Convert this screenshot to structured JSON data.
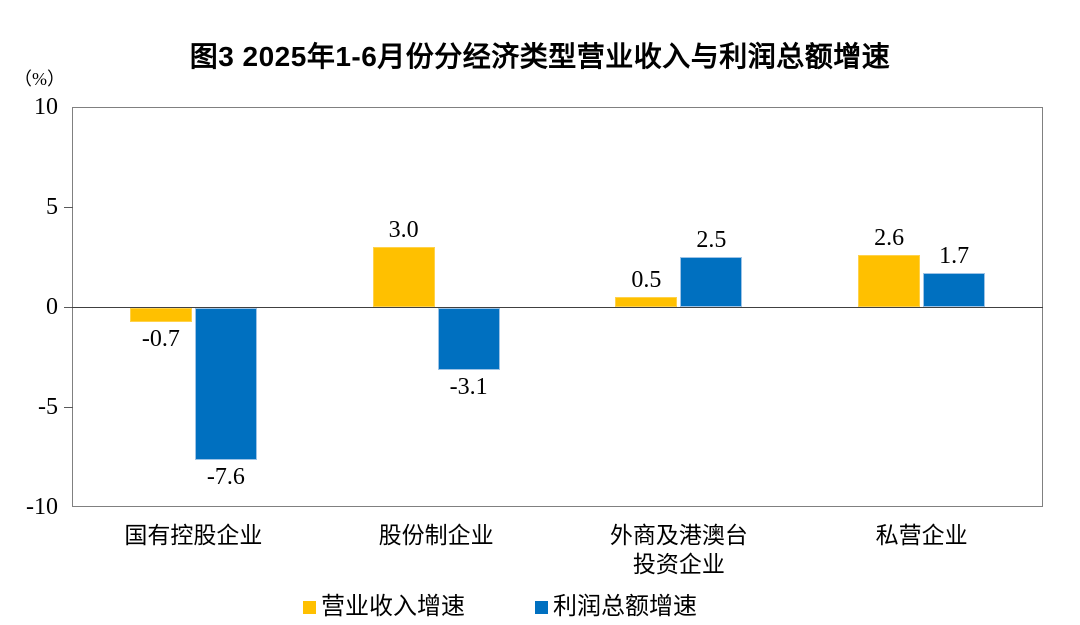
{
  "title": "图3 2025年1-6月份分经济类型营业收入与利润总额增速",
  "y_axis_unit": "（%）",
  "colors": {
    "revenue_series": "#FFC000",
    "revenue_series_edge": "#FFD24B",
    "profit_series": "#0070C0",
    "profit_series_edge": "#9DC3E6",
    "plot_border": "#808080",
    "zero_line": "#404040",
    "text": "#000000"
  },
  "chart_data": {
    "type": "bar",
    "title": "图3 2025年1-6月份分经济类型营业收入与利润总额增速",
    "categories": [
      "国有控股企业",
      "股份制企业",
      "外商及港澳台\n投资企业",
      "私营企业"
    ],
    "series": [
      {
        "name": "营业收入增速",
        "color": "#FFC000",
        "edge_color": "#FFD24B",
        "values": [
          -0.7,
          3.0,
          0.5,
          2.6
        ],
        "value_labels": [
          "-0.7",
          "3.0",
          "0.5",
          "2.6"
        ]
      },
      {
        "name": "利润总额增速",
        "color": "#0070C0",
        "edge_color": "#9DC3E6",
        "values": [
          -7.6,
          -3.1,
          2.5,
          1.7
        ],
        "value_labels": [
          "-7.6",
          "-3.1",
          "2.5",
          "1.7"
        ]
      }
    ],
    "xlabel": "",
    "ylabel": "（%）",
    "ylim": [
      -10,
      10
    ],
    "yticks": [
      10,
      5,
      0,
      -5,
      -10
    ],
    "ytick_labels": [
      "10",
      "5",
      "0",
      "-5",
      "-10"
    ],
    "grid": false,
    "legend_position": "bottom"
  }
}
